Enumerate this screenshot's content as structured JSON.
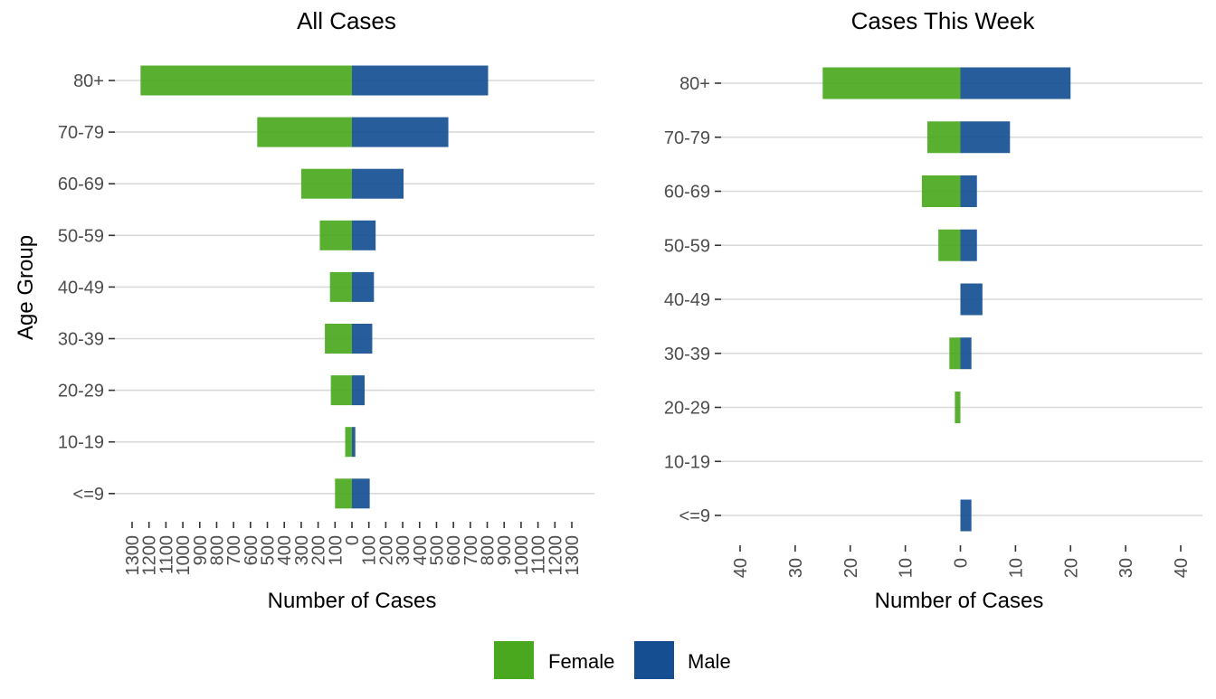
{
  "ylabel": "Age Group",
  "legend": {
    "position": "bottom",
    "items": [
      {
        "label": "Female",
        "color": "#4aa81e"
      },
      {
        "label": "Male",
        "color": "#154f92"
      }
    ]
  },
  "chart_data": [
    {
      "type": "bar",
      "orientation": "horizontal-population-pyramid",
      "title": "All Cases",
      "xlabel": "Number of Cases",
      "ylabel": "Age Group",
      "categories": [
        "80+",
        "70-79",
        "60-69",
        "50-59",
        "40-49",
        "30-39",
        "20-29",
        "10-19",
        "<=9"
      ],
      "series": [
        {
          "name": "Female",
          "values": [
            1250,
            560,
            300,
            190,
            130,
            160,
            125,
            40,
            100
          ]
        },
        {
          "name": "Male",
          "values": [
            805,
            570,
            305,
            140,
            130,
            120,
            75,
            20,
            105
          ]
        }
      ],
      "xlim": [
        -1300,
        1300
      ],
      "xticks": [
        -1300,
        -1200,
        -1100,
        -1000,
        -900,
        -800,
        -700,
        -600,
        -500,
        -400,
        -300,
        -200,
        -100,
        0,
        100,
        200,
        300,
        400,
        500,
        600,
        700,
        800,
        900,
        1000,
        1100,
        1200,
        1300
      ],
      "xtick_labels": [
        "1300",
        "1200",
        "1100",
        "1000",
        "900",
        "800",
        "700",
        "600",
        "500",
        "400",
        "300",
        "200",
        "100",
        "0",
        "100",
        "200",
        "300",
        "400",
        "500",
        "600",
        "700",
        "800",
        "900",
        "1000",
        "1100",
        "1200",
        "1300"
      ],
      "grid": "horizontal"
    },
    {
      "type": "bar",
      "orientation": "horizontal-population-pyramid",
      "title": "Cases This Week",
      "xlabel": "Number of Cases",
      "ylabel": "",
      "categories": [
        "80+",
        "70-79",
        "60-69",
        "50-59",
        "40-49",
        "30-39",
        "20-29",
        "10-19",
        "<=9"
      ],
      "series": [
        {
          "name": "Female",
          "values": [
            25,
            6,
            7,
            4,
            0,
            2,
            1,
            0,
            0
          ]
        },
        {
          "name": "Male",
          "values": [
            20,
            9,
            3,
            3,
            4,
            2,
            0,
            0,
            2
          ]
        }
      ],
      "xlim": [
        -40,
        40
      ],
      "xticks": [
        -40,
        -30,
        -20,
        -10,
        0,
        10,
        20,
        30,
        40
      ],
      "xtick_labels": [
        "40",
        "30",
        "20",
        "10",
        "0",
        "10",
        "20",
        "30",
        "40"
      ],
      "grid": "horizontal"
    }
  ]
}
